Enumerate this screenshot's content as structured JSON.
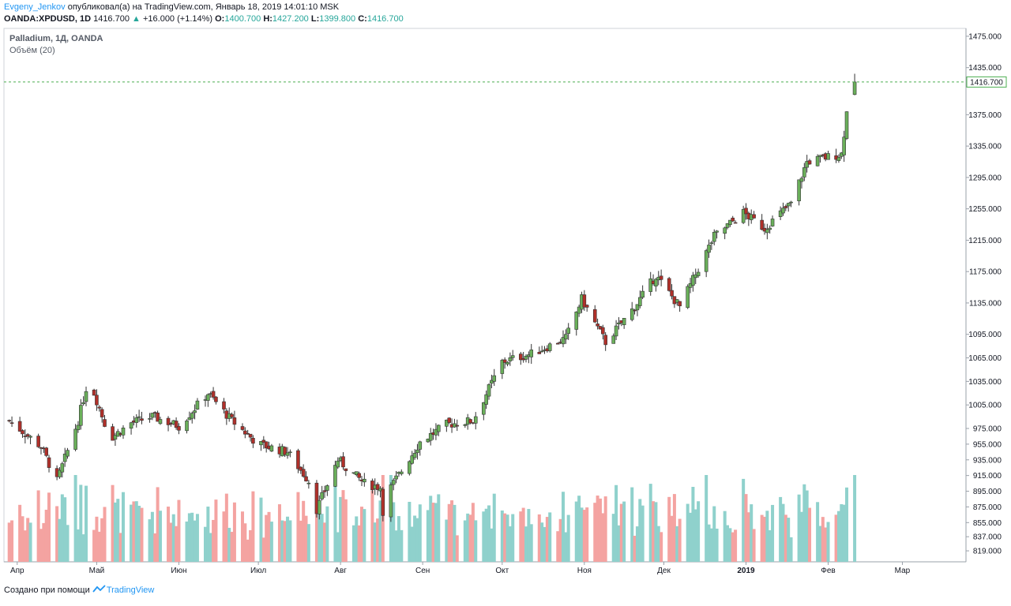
{
  "header": {
    "author": "Evgeny_Jenkov",
    "published_text": "опубликовал(а) на TradingView.com, Январь 18, 2019 14:01:10 MSK",
    "symbol": "OANDA:XPDUSD, 1D",
    "last": "1416.700",
    "change_arrow": "▲",
    "change": "+16.000 (+1.14%)",
    "o_label": "O:",
    "o_value": "1400.700",
    "h_label": "H:",
    "h_value": "1427.200",
    "l_label": "L:",
    "l_value": "1399.800",
    "c_label": "C:",
    "c_value": "1416.700"
  },
  "legend": {
    "main": "Palladium, 1Д, OANDA",
    "volume": "Объём (20)"
  },
  "price_label": "1416.700",
  "footer": {
    "created_text": "Создано при помощи",
    "brand": "TradingView",
    "brand_icon": "tradingview-logo-icon"
  },
  "colors": {
    "up": "#26a69a",
    "down": "#ef5350",
    "up_candle_fill": "#6aaf5a",
    "down_candle_fill": "#b0302a",
    "vol_up": "#8fd1cc",
    "vol_down": "#f4a3a1",
    "last_price_line": "#4caf50",
    "author": "#2196f3"
  },
  "chart_data": {
    "type": "candlestick",
    "title": "Palladium, 1Д, OANDA",
    "y_ticks": [
      "1475.000",
      "1435.000",
      "1375.000",
      "1335.000",
      "1295.000",
      "1255.000",
      "1215.000",
      "1175.000",
      "1135.000",
      "1095.000",
      "1065.000",
      "1035.000",
      "1005.000",
      "975.000",
      "955.000",
      "935.000",
      "915.000",
      "895.000",
      "875.000",
      "855.000",
      "837.000",
      "819.000"
    ],
    "x_ticks": [
      "Апр",
      "Май",
      "Июн",
      "Июл",
      "Авг",
      "Сен",
      "Окт",
      "Ноя",
      "Дек",
      "2019",
      "Фев",
      "Мар"
    ],
    "ylim": [
      805,
      1485
    ],
    "last_price": 1416.7,
    "close_path": [
      {
        "date": "2018-03-29",
        "close": 985
      },
      {
        "date": "2018-04-10",
        "close": 952
      },
      {
        "date": "2018-04-16",
        "close": 908
      },
      {
        "date": "2018-04-24",
        "close": 985
      },
      {
        "date": "2018-04-28",
        "close": 1040
      },
      {
        "date": "2018-05-06",
        "close": 962
      },
      {
        "date": "2018-05-14",
        "close": 982
      },
      {
        "date": "2018-05-22",
        "close": 990
      },
      {
        "date": "2018-06-01",
        "close": 978
      },
      {
        "date": "2018-06-12",
        "close": 1020
      },
      {
        "date": "2018-06-21",
        "close": 985
      },
      {
        "date": "2018-07-01",
        "close": 955
      },
      {
        "date": "2018-07-12",
        "close": 945
      },
      {
        "date": "2018-07-20",
        "close": 908
      },
      {
        "date": "2018-07-23",
        "close": 872
      },
      {
        "date": "2018-07-31",
        "close": 935
      },
      {
        "date": "2018-08-10",
        "close": 905
      },
      {
        "date": "2018-08-16",
        "close": 900
      },
      {
        "date": "2018-08-17",
        "close": 870
      },
      {
        "date": "2018-08-20",
        "close": 900
      },
      {
        "date": "2018-08-31",
        "close": 958
      },
      {
        "date": "2018-09-10",
        "close": 980
      },
      {
        "date": "2018-09-20",
        "close": 985
      },
      {
        "date": "2018-10-01",
        "close": 1060
      },
      {
        "date": "2018-10-12",
        "close": 1070
      },
      {
        "date": "2018-10-25",
        "close": 1090
      },
      {
        "date": "2018-10-31",
        "close": 1140
      },
      {
        "date": "2018-11-09",
        "close": 1085
      },
      {
        "date": "2018-11-20",
        "close": 1130
      },
      {
        "date": "2018-11-28",
        "close": 1170
      },
      {
        "date": "2018-12-07",
        "close": 1130
      },
      {
        "date": "2018-12-20",
        "close": 1220
      },
      {
        "date": "2018-12-31",
        "close": 1250
      },
      {
        "date": "2019-01-08",
        "close": 1230
      },
      {
        "date": "2019-01-18",
        "close": 1262
      },
      {
        "date": "2019-01-24",
        "close": 1315
      },
      {
        "date": "2019-02-06",
        "close": 1325
      },
      {
        "date": "2019-02-08",
        "close": 1378
      },
      {
        "date": "2019-02-11",
        "close": 1416.7
      }
    ]
  }
}
